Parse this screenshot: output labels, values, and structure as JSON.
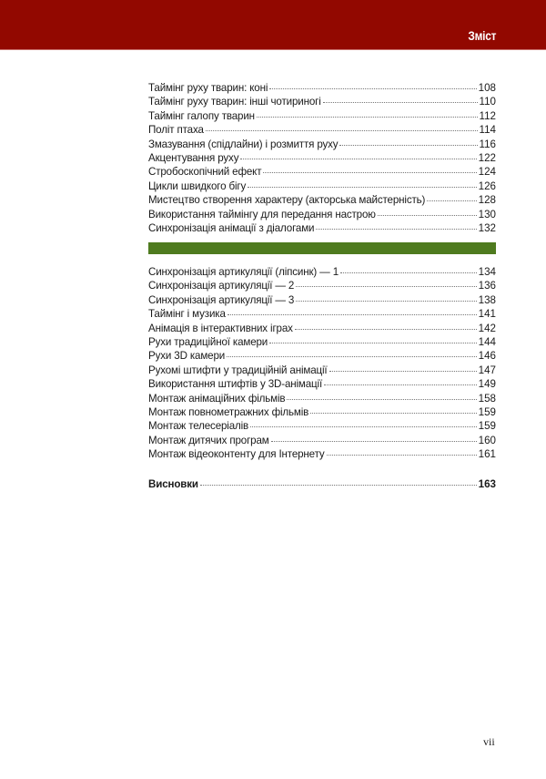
{
  "header": {
    "title": "Зміст",
    "color": "#920800"
  },
  "section_divider_color": "#4f7b1f",
  "toc_part1": [
    {
      "title": "Таймінг руху тварин: коні",
      "page": "108"
    },
    {
      "title": "Таймінг руху тварин: інші чотириногі",
      "page": "110"
    },
    {
      "title": "Таймінг галопу тварин",
      "page": "112"
    },
    {
      "title": "Політ птаха",
      "page": "114"
    },
    {
      "title": "Змазування (спідлайни) і розмиття руху",
      "page": "116"
    },
    {
      "title": "Акцентування руху",
      "page": "122"
    },
    {
      "title": "Стробоскопічний ефект",
      "page": "124"
    },
    {
      "title": "Цикли швидкого бігу",
      "page": "126"
    },
    {
      "title": "Мистецтво створення характеру (акторська майстерність)",
      "page": "128"
    },
    {
      "title": "Використання таймінгу для передання настрою",
      "page": "130"
    },
    {
      "title": "Синхронізація анімації з діалогами",
      "page": "132"
    }
  ],
  "toc_part2": [
    {
      "title": "Синхронізація артикуляції (ліпсинк) — 1",
      "page": "134"
    },
    {
      "title": "Синхронізація артикуляції — 2",
      "page": "136"
    },
    {
      "title": "Синхронізація артикуляції — 3",
      "page": "138"
    },
    {
      "title": "Таймінг і музика",
      "page": "141"
    },
    {
      "title": "Анімація в інтерактивних іграх",
      "page": "142"
    },
    {
      "title": "Рухи традиційної камери",
      "page": "144"
    },
    {
      "title": "Рухи 3D камери",
      "page": "146"
    },
    {
      "title": "Рухомі штифти у традиційній анімації",
      "page": "147"
    },
    {
      "title": "Використання штифтів у 3D-анімації",
      "page": "149"
    },
    {
      "title": "Монтаж анімаційних фільмів",
      "page": "158"
    },
    {
      "title": "Монтаж повнометражних фільмів",
      "page": "159"
    },
    {
      "title": "Монтаж телесеріалів",
      "page": "159"
    },
    {
      "title": "Монтаж дитячих програм",
      "page": "160"
    },
    {
      "title": "Монтаж відеоконтенту для Інтернету",
      "page": "161"
    }
  ],
  "conclusion": {
    "title": "Висновки",
    "page": "163"
  },
  "page_number": "vii"
}
